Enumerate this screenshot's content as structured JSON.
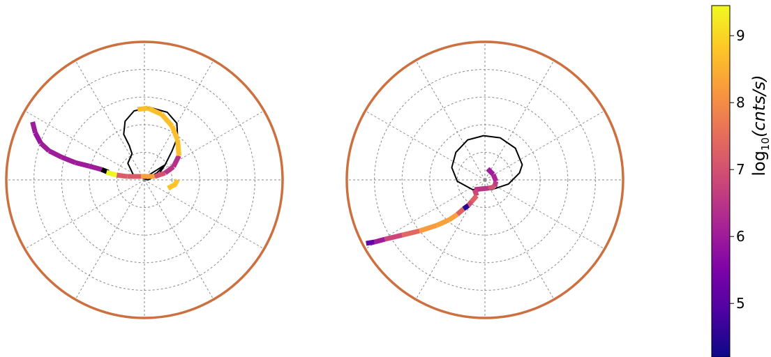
{
  "chart_data": [
    {
      "type": "scatter",
      "projection": "polar",
      "grid": true,
      "rings": 5,
      "spokes": 12,
      "boundary_color": "#cd7040",
      "reference_curve": {
        "color": "#000000",
        "description": "closed black curve",
        "points": [
          [
            0.0,
            -0.03
          ],
          [
            0.08,
            -0.05
          ],
          [
            0.18,
            -0.1
          ],
          [
            0.3,
            -0.22
          ],
          [
            0.4,
            -0.42
          ],
          [
            0.48,
            -0.62
          ],
          [
            0.47,
            -0.82
          ],
          [
            0.33,
            -0.98
          ],
          [
            0.08,
            -1.05
          ],
          [
            -0.15,
            -1.0
          ],
          [
            -0.28,
            -0.85
          ],
          [
            -0.3,
            -0.66
          ],
          [
            -0.22,
            -0.5
          ],
          [
            -0.18,
            -0.38
          ],
          [
            -0.24,
            -0.24
          ],
          [
            -0.16,
            -0.07
          ],
          [
            0.05,
            0.0
          ],
          [
            0.2,
            -0.07
          ],
          [
            0.3,
            -0.22
          ]
        ]
      },
      "track": {
        "colored_by": "log10(cnts/s)",
        "points": [
          [
            -1.62,
            -0.84,
            6.0
          ],
          [
            -1.58,
            -0.68,
            5.9
          ],
          [
            -1.5,
            -0.53,
            6.0
          ],
          [
            -1.38,
            -0.42,
            6.0
          ],
          [
            -1.2,
            -0.33,
            6.0
          ],
          [
            -1.0,
            -0.25,
            6.0
          ],
          [
            -0.8,
            -0.2,
            6.0
          ],
          [
            -0.62,
            -0.15,
            4.0
          ],
          [
            -0.52,
            -0.11,
            4.0
          ],
          [
            -0.55,
            -0.11,
            9.4
          ],
          [
            -0.4,
            -0.07,
            7.2
          ],
          [
            -0.25,
            -0.05,
            7.2
          ],
          [
            -0.05,
            -0.05,
            8.3
          ],
          [
            0.15,
            -0.05,
            7.0
          ],
          [
            0.3,
            -0.1,
            6.5
          ],
          [
            0.42,
            -0.19,
            6.4
          ],
          [
            0.5,
            -0.35,
            8.7
          ],
          [
            0.48,
            -0.58,
            8.7
          ],
          [
            0.4,
            -0.78,
            8.7
          ],
          [
            0.25,
            -0.95,
            8.7
          ],
          [
            0.05,
            -1.04,
            8.7
          ],
          [
            -0.1,
            -1.02,
            8.7
          ]
        ],
        "tail": {
          "points": [
            [
              0.48,
              0.0
            ],
            [
              0.44,
              0.07
            ],
            [
              0.34,
              0.12
            ]
          ],
          "value": 8.8
        }
      }
    },
    {
      "type": "scatter",
      "projection": "polar",
      "grid": true,
      "rings": 5,
      "spokes": 12,
      "boundary_color": "#cd7040",
      "reference_curve": {
        "color": "#000000",
        "description": "closed black curve",
        "points": [
          [
            0.54,
            -0.22
          ],
          [
            0.44,
            -0.46
          ],
          [
            0.22,
            -0.61
          ],
          [
            -0.02,
            -0.64
          ],
          [
            -0.25,
            -0.58
          ],
          [
            -0.42,
            -0.4
          ],
          [
            -0.48,
            -0.18
          ],
          [
            -0.4,
            0.02
          ],
          [
            -0.18,
            0.14
          ],
          [
            0.1,
            0.14
          ],
          [
            0.34,
            0.06
          ],
          [
            0.5,
            -0.1
          ],
          [
            0.54,
            -0.22
          ]
        ]
      },
      "track": {
        "colored_by": "log10(cnts/s)",
        "points": [
          [
            0.04,
            -0.16,
            6.0
          ],
          [
            0.12,
            -0.08,
            6.2
          ],
          [
            0.16,
            0.02,
            6.6
          ],
          [
            0.14,
            0.1,
            7.0
          ],
          [
            0.05,
            0.12,
            6.5
          ],
          [
            -0.15,
            0.14,
            6.8
          ],
          [
            -0.12,
            0.23,
            7.3
          ],
          [
            -0.19,
            0.31,
            7.0
          ],
          [
            -0.24,
            0.37,
            4.5
          ],
          [
            -0.31,
            0.42,
            7.3
          ],
          [
            -0.4,
            0.5,
            8.3
          ],
          [
            -0.52,
            0.58,
            8.3
          ],
          [
            -0.7,
            0.66,
            8.2
          ],
          [
            -0.95,
            0.74,
            7.4
          ],
          [
            -1.2,
            0.8,
            6.8
          ],
          [
            -1.45,
            0.86,
            6.0
          ],
          [
            -1.6,
            0.9,
            5.2
          ],
          [
            -1.72,
            0.92,
            5.0
          ]
        ]
      }
    }
  ],
  "colorbar": {
    "label": "log₁₀(cnts/s)",
    "label_base": "log",
    "label_sub": "10",
    "label_arg": "(cnts/s)",
    "vmin": 4.2,
    "vmax": 9.45,
    "ticks": [
      "5",
      "6",
      "7",
      "8",
      "9"
    ],
    "colormap": "plasma"
  }
}
